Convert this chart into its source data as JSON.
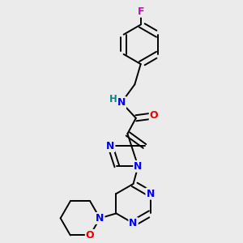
{
  "background_color": "#ebebeb",
  "atom_colors": {
    "C": "#000000",
    "N": "#0000ee",
    "O": "#ee0000",
    "F": "#cc00cc",
    "H": "#008888"
  },
  "bond_color": "#000000",
  "bond_width": 1.4,
  "figsize": [
    3.0,
    3.0
  ],
  "dpi": 100,
  "xlim": [
    0.0,
    10.0
  ],
  "ylim": [
    0.0,
    10.0
  ]
}
